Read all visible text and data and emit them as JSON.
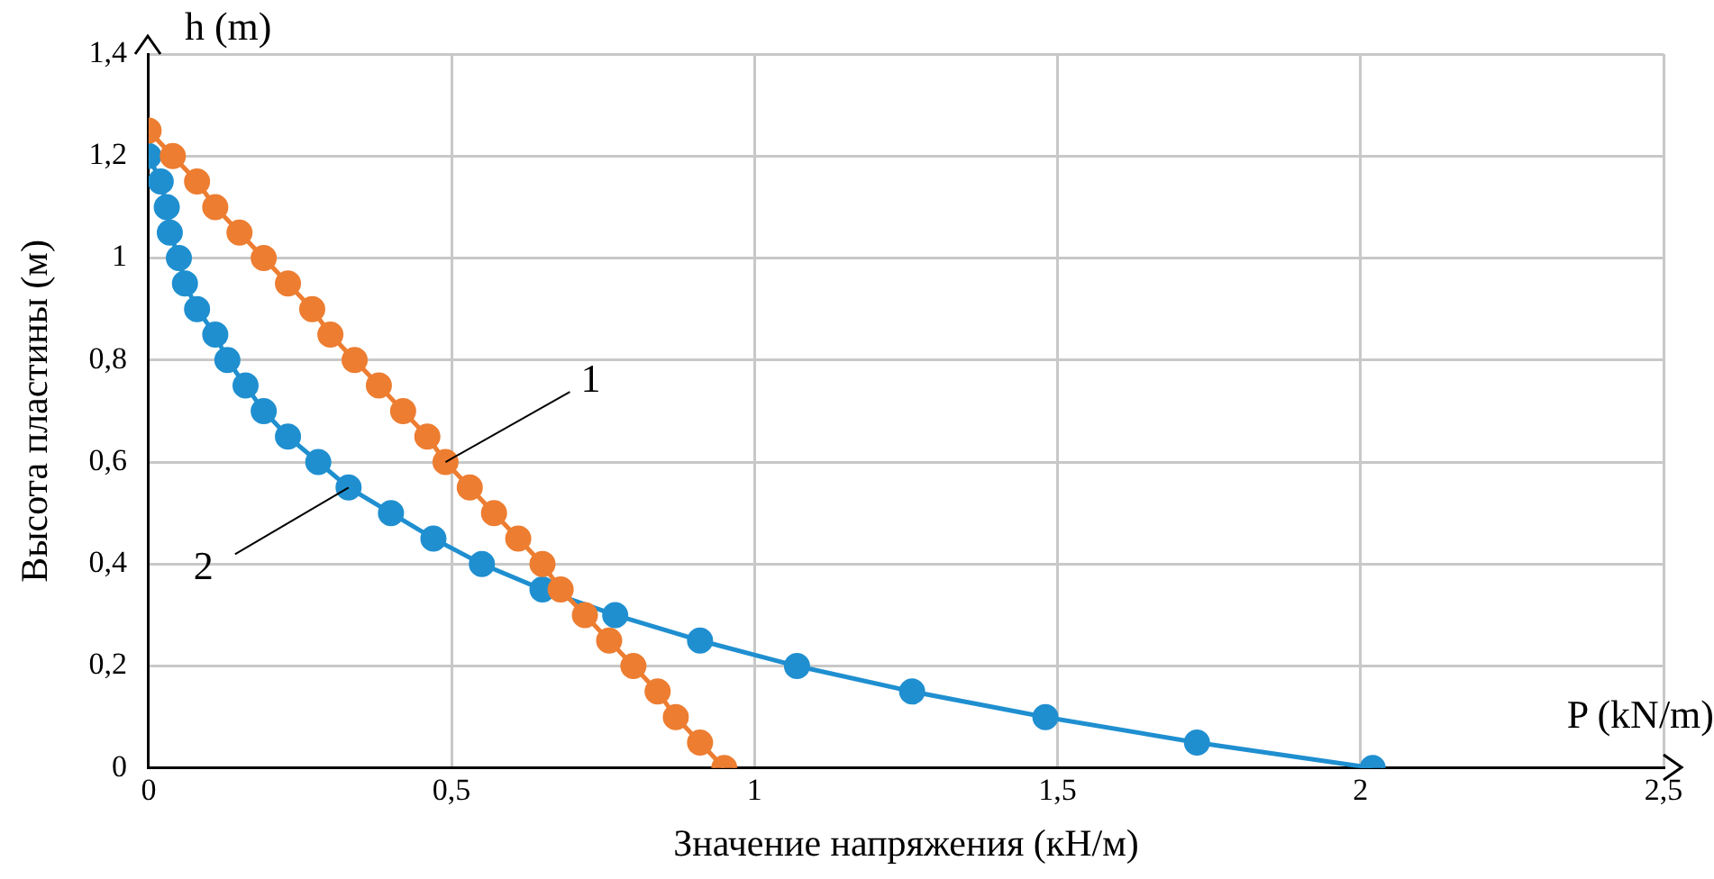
{
  "chart_data": {
    "type": "line",
    "xlabel": "Значение напряжения (кН/м)",
    "ylabel": "Высота пластины (м)",
    "annotations": [
      "h (m)",
      "P (kN/m)"
    ],
    "xlim": [
      0,
      2.5
    ],
    "ylim": [
      0,
      1.4
    ],
    "xticks": [
      0,
      {
        "value": 0.5,
        "label": "0,5"
      },
      1,
      {
        "value": 1.5,
        "label": "1,5"
      },
      2,
      {
        "value": 2.5,
        "label": "2,5"
      }
    ],
    "yticks": [
      0,
      {
        "value": 0.2,
        "label": "0,2"
      },
      {
        "value": 0.4,
        "label": "0,4"
      },
      {
        "value": 0.6,
        "label": "0,6"
      },
      {
        "value": 0.8,
        "label": "0,8"
      },
      1,
      {
        "value": 1.2,
        "label": "1,2"
      },
      {
        "value": 1.4,
        "label": "1,4"
      }
    ],
    "grid": true,
    "legend": false,
    "marker": "circle",
    "line_style": "solid",
    "series": [
      {
        "name": "1",
        "color": "#ed7d31",
        "x": [
          0,
          0.04,
          0.08,
          0.11,
          0.15,
          0.19,
          0.23,
          0.27,
          0.3,
          0.34,
          0.38,
          0.42,
          0.46,
          0.49,
          0.53,
          0.57,
          0.61,
          0.65,
          0.68,
          0.72,
          0.76,
          0.8,
          0.84,
          0.87,
          0.91,
          0.95
        ],
        "values": [
          1.25,
          1.2,
          1.15,
          1.1,
          1.05,
          1,
          0.95,
          0.9,
          0.85,
          0.8,
          0.75,
          0.7,
          0.65,
          0.6,
          0.55,
          0.5,
          0.45,
          0.4,
          0.35,
          0.3,
          0.25,
          0.2,
          0.15,
          0.1,
          0.05,
          0
        ]
      },
      {
        "name": "2",
        "color": "#1f8fd0",
        "x": [
          0,
          0.02,
          0.03,
          0.035,
          0.05,
          0.06,
          0.08,
          0.11,
          0.13,
          0.16,
          0.19,
          0.23,
          0.28,
          0.33,
          0.4,
          0.47,
          0.55,
          0.65,
          0.77,
          0.91,
          1.07,
          1.26,
          1.48,
          1.73,
          2.02
        ],
        "values": [
          1.2,
          1.15,
          1.1,
          1.05,
          1,
          0.95,
          0.9,
          0.85,
          0.8,
          0.75,
          0.7,
          0.65,
          0.6,
          0.55,
          0.5,
          0.45,
          0.4,
          0.35,
          0.3,
          0.25,
          0.2,
          0.15,
          0.1,
          0.05,
          0
        ]
      }
    ]
  }
}
